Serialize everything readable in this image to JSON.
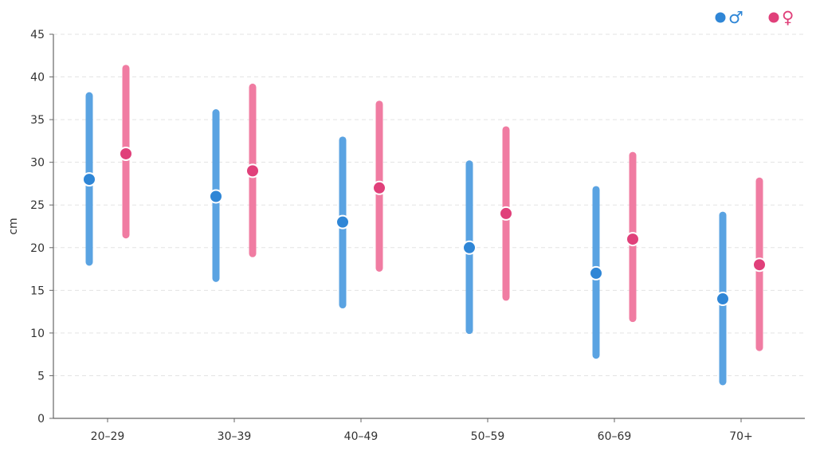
{
  "chart_data": {
    "type": "range-dot",
    "ylabel": "cm",
    "ylim": [
      0,
      45
    ],
    "yticks": [
      0,
      5,
      10,
      15,
      20,
      25,
      30,
      35,
      40,
      45
    ],
    "grid": true,
    "legend_position": "top-right",
    "categories": [
      "20–29",
      "30–39",
      "40–49",
      "50–59",
      "60–69",
      "70+"
    ],
    "series": [
      {
        "name": "♂",
        "color": "#2f86d6",
        "range_color": "#5aa3e2",
        "values": [
          28,
          26,
          23,
          20,
          17,
          14
        ],
        "low": [
          18.3,
          16.4,
          13.3,
          10.3,
          7.4,
          4.3
        ],
        "high": [
          37.8,
          35.8,
          32.6,
          29.8,
          26.8,
          23.8
        ]
      },
      {
        "name": "♀",
        "color": "#e0407a",
        "range_color": "#f07ca2",
        "values": [
          31,
          29,
          27,
          24,
          21,
          18
        ],
        "low": [
          21.5,
          19.3,
          17.6,
          14.2,
          11.7,
          8.3
        ],
        "high": [
          41,
          38.8,
          36.8,
          33.8,
          30.8,
          27.8
        ]
      }
    ]
  }
}
